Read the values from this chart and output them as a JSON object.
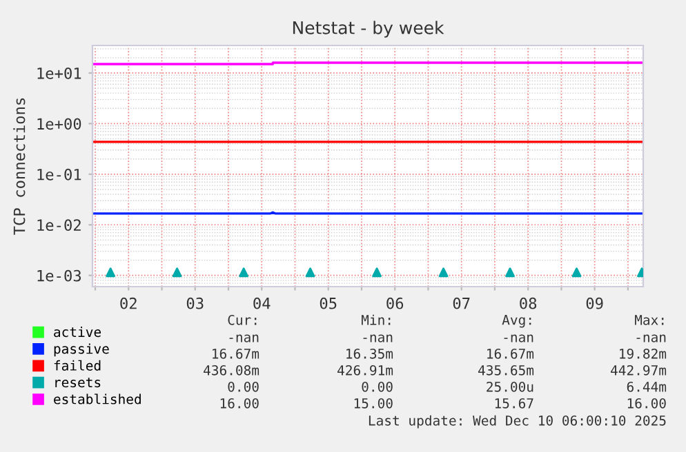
{
  "chart_data": {
    "type": "line",
    "title": "Netstat - by week",
    "ylabel": "TCP connections",
    "log": "y",
    "grid": true,
    "legend": "bottom",
    "marker": "none",
    "line_style": "solid",
    "xlim": [
      "2025-12-01T23:00",
      "2025-12-10T05:30"
    ],
    "ylim": [
      0.0006,
      35
    ],
    "xticks": [
      {
        "value": "2025-12-02",
        "label": null
      },
      {
        "value": "2025-12-02T12:00",
        "label": "02"
      },
      {
        "value": "2025-12-03",
        "label": null
      },
      {
        "value": "2025-12-03T12:00",
        "label": "03"
      },
      {
        "value": "2025-12-04",
        "label": null
      },
      {
        "value": "2025-12-04T12:00",
        "label": "04"
      },
      {
        "value": "2025-12-05",
        "label": null
      },
      {
        "value": "2025-12-05T12:00",
        "label": "05"
      },
      {
        "value": "2025-12-06",
        "label": null
      },
      {
        "value": "2025-12-06T12:00",
        "label": "06"
      },
      {
        "value": "2025-12-07",
        "label": null
      },
      {
        "value": "2025-12-07T12:00",
        "label": "07"
      },
      {
        "value": "2025-12-08",
        "label": null
      },
      {
        "value": "2025-12-08T12:00",
        "label": "08"
      },
      {
        "value": "2025-12-09",
        "label": null
      },
      {
        "value": "2025-12-09T12:00",
        "label": "09"
      },
      {
        "value": "2025-12-10",
        "label": null
      }
    ],
    "yticks": [
      {
        "value": 0.001,
        "label": "1e-03"
      },
      {
        "value": 0.01,
        "label": "1e-02"
      },
      {
        "value": 0.1,
        "label": "1e-01"
      },
      {
        "value": 1,
        "label": "1e+00"
      },
      {
        "value": 10,
        "label": "1e+01"
      }
    ],
    "series": [
      {
        "name": "active",
        "color": "#22ff22"
      },
      {
        "name": "passive",
        "color": "#0022ff",
        "x": [
          "2025-12-01T23:00",
          "2025-12-04T15:00",
          "2025-12-04T16:00",
          "2025-12-04T17:00",
          "2025-12-10T05:30"
        ],
        "values": [
          0.0167,
          0.0167,
          0.0176,
          0.0167,
          0.0167
        ]
      },
      {
        "name": "failed",
        "color": "#ff0000",
        "x": [
          "2025-12-01T23:00",
          "2025-12-10T05:30"
        ],
        "values": [
          0.436,
          0.436
        ]
      },
      {
        "name": "resets",
        "type": "scatter",
        "color": "#00aaaa",
        "marker": "triangle",
        "x": [
          "2025-12-02T05:30",
          "2025-12-03T05:30",
          "2025-12-04T05:30",
          "2025-12-05T05:30",
          "2025-12-06T05:30",
          "2025-12-07T05:30",
          "2025-12-08T05:30",
          "2025-12-09T05:30",
          "2025-12-10T05:00"
        ],
        "values": [
          0.00115,
          0.00115,
          0.00115,
          0.00115,
          0.00115,
          0.00115,
          0.00115,
          0.00115,
          0.00115
        ]
      },
      {
        "name": "established",
        "color": "#ff00ff",
        "x": [
          "2025-12-01T23:00",
          "2025-12-04T16:00",
          "2025-12-04T16:01",
          "2025-12-10T05:30"
        ],
        "values": [
          15,
          15,
          16,
          16
        ]
      }
    ],
    "annotations": [
      "Cur:",
      "Min:",
      "Avg:",
      "Max:",
      "-nan",
      "-nan",
      "-nan",
      "-nan",
      "16.67m",
      "16.35m",
      "16.67m",
      "19.82m",
      "436.08m",
      "426.91m",
      "435.65m",
      "442.97m",
      "0.00",
      "0.00",
      "25.00u",
      "6.44m",
      "16.00",
      "15.00",
      "15.67",
      "16.00",
      "Last update: Wed Dec 10 06:00:10 2025"
    ]
  }
}
